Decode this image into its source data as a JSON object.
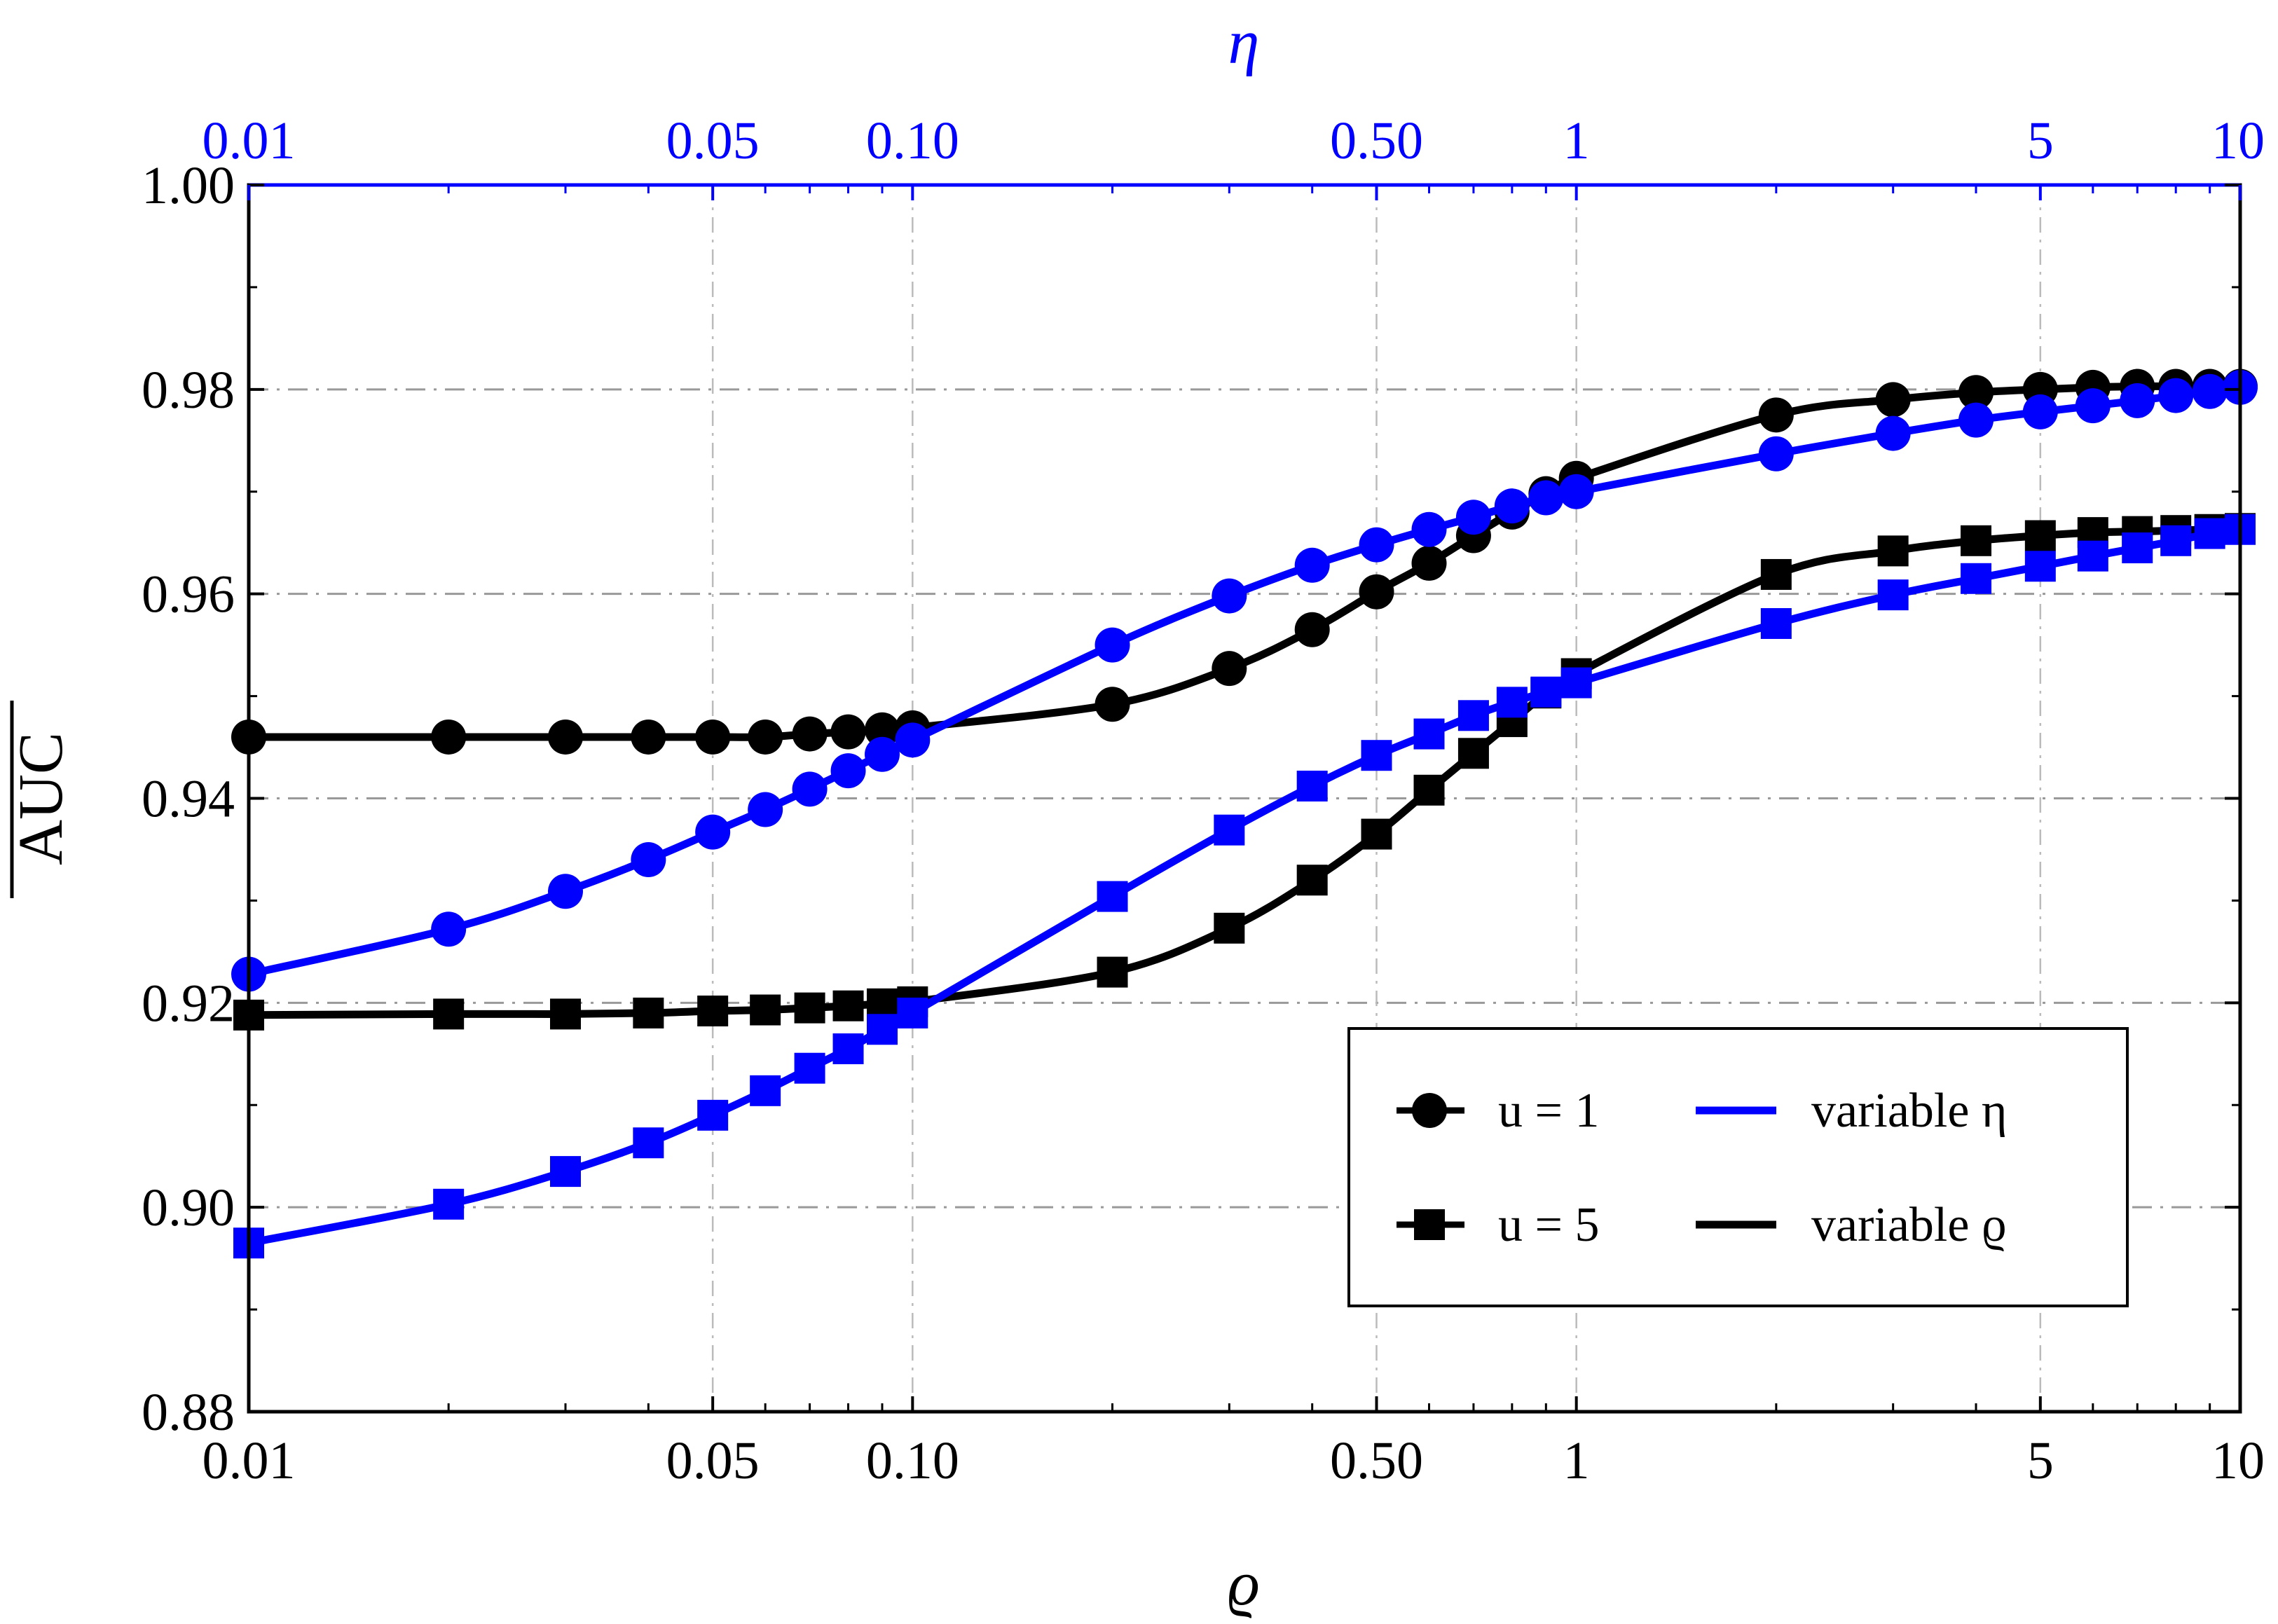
{
  "chart_data": {
    "type": "line",
    "x_scale": "log",
    "xlim": [
      0.01,
      10
    ],
    "ylim": [
      0.88,
      1.0
    ],
    "xlabel_bottom": "ϱ",
    "xlabel_top": "η",
    "ylabel": "AUC",
    "grid": true,
    "legend_position": "bottom-right",
    "colors": {
      "variable_eta": "#0000ff",
      "variable_rho": "#000000",
      "frame": "#000000",
      "top_axis": "#0000ff",
      "grid": "#999999"
    },
    "y_ticks": [
      0.88,
      0.9,
      0.92,
      0.94,
      0.96,
      0.98,
      1.0
    ],
    "y_tick_labels": [
      "0.88",
      "0.90",
      "0.92",
      "0.94",
      "0.96",
      "0.98",
      "1.00"
    ],
    "x_ticks": [
      0.01,
      0.05,
      0.1,
      0.5,
      1,
      5,
      10
    ],
    "x_tick_labels": [
      "0.01",
      "0.05",
      "0.10",
      "0.50",
      "1",
      "5",
      "10"
    ],
    "top_tick_labels": [
      "0.01",
      "0.05",
      "0.10",
      "0.50",
      "1",
      "5",
      "10"
    ],
    "legend": [
      {
        "label": "u = 1",
        "marker": "circle"
      },
      {
        "label": "u = 5",
        "marker": "square"
      },
      {
        "label": "variable η",
        "line": "variable_eta"
      },
      {
        "label": "variable ϱ",
        "line": "variable_rho"
      }
    ],
    "series": [
      {
        "name": "u = 1, variable ϱ",
        "marker": "circle",
        "color_key": "variable_rho",
        "x": [
          0.01,
          0.02,
          0.03,
          0.04,
          0.05,
          0.06,
          0.07,
          0.08,
          0.09,
          0.1,
          0.2,
          0.3,
          0.4,
          0.5,
          0.6,
          0.7,
          0.8,
          0.9,
          1,
          2,
          3,
          4,
          5,
          6,
          7,
          8,
          9,
          10
        ],
        "y": [
          0.946,
          0.946,
          0.946,
          0.946,
          0.946,
          0.946,
          0.9463,
          0.9465,
          0.9467,
          0.9469,
          0.9492,
          0.9527,
          0.9565,
          0.9602,
          0.963,
          0.9657,
          0.968,
          0.9698,
          0.9713,
          0.9775,
          0.979,
          0.9797,
          0.98,
          0.9802,
          0.9803,
          0.9803,
          0.9803,
          0.9803
        ]
      },
      {
        "name": "u = 1, variable η",
        "marker": "circle",
        "color_key": "variable_eta",
        "x": [
          0.01,
          0.02,
          0.03,
          0.04,
          0.05,
          0.06,
          0.07,
          0.08,
          0.09,
          0.1,
          0.2,
          0.3,
          0.4,
          0.5,
          0.6,
          0.7,
          0.8,
          0.9,
          1,
          2,
          3,
          4,
          5,
          6,
          7,
          8,
          9,
          10
        ],
        "y": [
          0.9228,
          0.9272,
          0.9309,
          0.934,
          0.9367,
          0.9389,
          0.9409,
          0.9427,
          0.9443,
          0.9457,
          0.955,
          0.9598,
          0.9628,
          0.9648,
          0.9663,
          0.9675,
          0.9686,
          0.9694,
          0.97,
          0.9737,
          0.9757,
          0.977,
          0.9778,
          0.9784,
          0.9789,
          0.9794,
          0.9798,
          0.9802
        ]
      },
      {
        "name": "u = 5, variable ϱ",
        "marker": "square",
        "color_key": "variable_rho",
        "x": [
          0.01,
          0.02,
          0.03,
          0.04,
          0.05,
          0.06,
          0.07,
          0.08,
          0.09,
          0.1,
          0.2,
          0.3,
          0.4,
          0.5,
          0.6,
          0.7,
          0.8,
          0.9,
          1,
          2,
          3,
          4,
          5,
          6,
          7,
          8,
          9,
          10
        ],
        "y": [
          0.9188,
          0.9189,
          0.9189,
          0.919,
          0.9192,
          0.9193,
          0.9195,
          0.9197,
          0.9199,
          0.9201,
          0.923,
          0.9273,
          0.932,
          0.9365,
          0.9408,
          0.9444,
          0.9475,
          0.9503,
          0.9522,
          0.9619,
          0.9642,
          0.9652,
          0.9657,
          0.966,
          0.9661,
          0.9662,
          0.9663,
          0.9664
        ]
      },
      {
        "name": "u = 5, variable η",
        "marker": "square",
        "color_key": "variable_eta",
        "x": [
          0.01,
          0.02,
          0.03,
          0.04,
          0.05,
          0.06,
          0.07,
          0.08,
          0.09,
          0.1,
          0.2,
          0.3,
          0.4,
          0.5,
          0.6,
          0.7,
          0.8,
          0.9,
          1,
          2,
          3,
          4,
          5,
          6,
          7,
          8,
          9,
          10
        ],
        "y": [
          0.8965,
          0.9003,
          0.9035,
          0.9063,
          0.909,
          0.9114,
          0.9136,
          0.9155,
          0.9174,
          0.919,
          0.9304,
          0.9369,
          0.9412,
          0.9442,
          0.9463,
          0.9481,
          0.9494,
          0.9504,
          0.9513,
          0.9571,
          0.9599,
          0.9615,
          0.9627,
          0.9637,
          0.9645,
          0.9652,
          0.9659,
          0.9663
        ]
      }
    ]
  }
}
